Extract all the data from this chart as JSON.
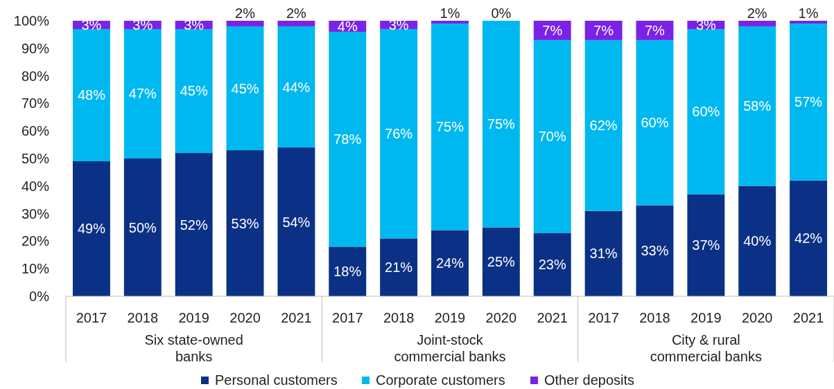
{
  "chart_data": {
    "type": "bar",
    "stacked": true,
    "categories": [
      "2017",
      "2018",
      "2019",
      "2020",
      "2021",
      "2017",
      "2018",
      "2019",
      "2020",
      "2021",
      "2017",
      "2018",
      "2019",
      "2020",
      "2021"
    ],
    "series": [
      {
        "name": "Personal customers",
        "color": "#0a3185",
        "values": [
          49,
          50,
          52,
          53,
          54,
          18,
          21,
          24,
          25,
          23,
          31,
          33,
          37,
          40,
          42
        ],
        "value_labels": [
          "49%",
          "50%",
          "52%",
          "53%",
          "54%",
          "18%",
          "21%",
          "24%",
          "25%",
          "23%",
          "31%",
          "33%",
          "37%",
          "40%",
          "42%"
        ]
      },
      {
        "name": "Corporate customers",
        "color": "#00b8f0",
        "values": [
          48,
          47,
          45,
          45,
          44,
          78,
          76,
          75,
          75,
          70,
          62,
          60,
          60,
          58,
          57
        ],
        "value_labels": [
          "48%",
          "47%",
          "45%",
          "45%",
          "44%",
          "78%",
          "76%",
          "75%",
          "75%",
          "70%",
          "62%",
          "60%",
          "60%",
          "58%",
          "57%"
        ]
      },
      {
        "name": "Other deposits",
        "color": "#7a22e6",
        "values": [
          3,
          3,
          3,
          2,
          2,
          4,
          3,
          1,
          0,
          7,
          7,
          7,
          3,
          2,
          1
        ],
        "value_labels": [
          "3%",
          "3%",
          "3%",
          "2%",
          "2%",
          "4%",
          "3%",
          "1%",
          "0%",
          "7%",
          "7%",
          "7%",
          "3%",
          "2%",
          "1%"
        ]
      }
    ],
    "ylim": [
      0,
      100
    ],
    "yticks": [
      {
        "value": 0,
        "label": "0%"
      },
      {
        "value": 10,
        "label": "10%"
      },
      {
        "value": 20,
        "label": "20%"
      },
      {
        "value": 30,
        "label": "30%"
      },
      {
        "value": 40,
        "label": "40%"
      },
      {
        "value": 50,
        "label": "50%"
      },
      {
        "value": 60,
        "label": "60%"
      },
      {
        "value": 70,
        "label": "70%"
      },
      {
        "value": 80,
        "label": "80%"
      },
      {
        "value": 90,
        "label": "90%"
      },
      {
        "value": 100,
        "label": "100%"
      }
    ],
    "annotations": [
      "Six state-owned banks",
      "Joint-stock commercial banks",
      "City & rural commercial banks"
    ],
    "legend": "bottom",
    "grid": false
  }
}
